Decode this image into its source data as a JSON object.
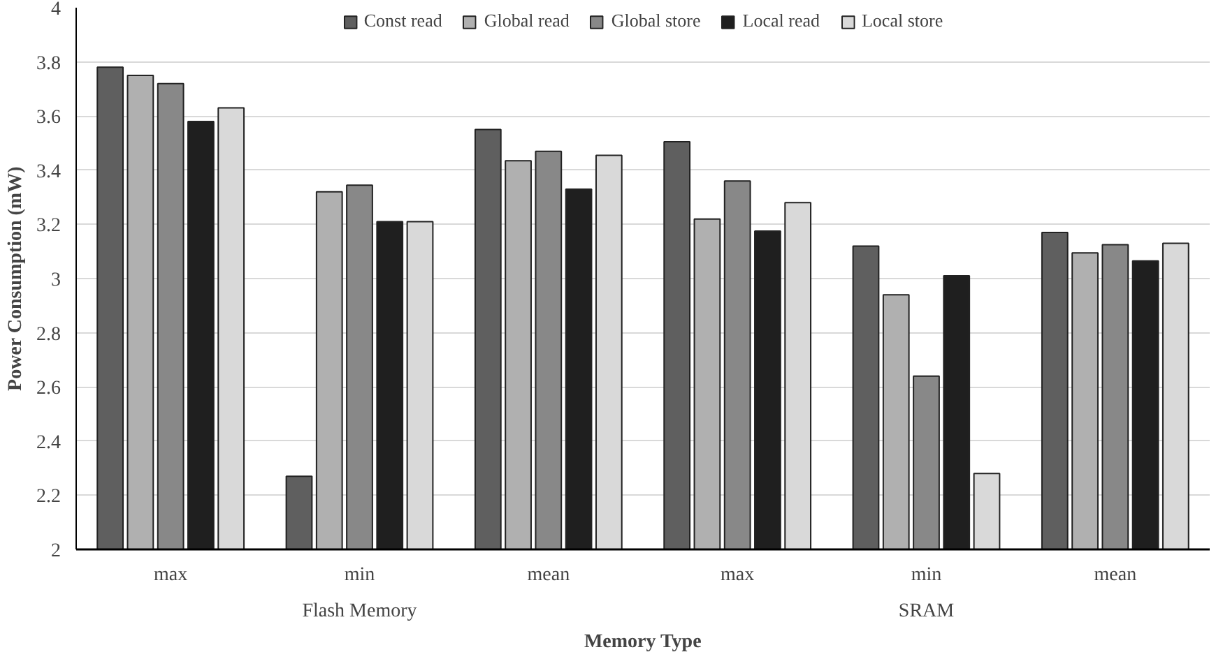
{
  "chart_data": {
    "type": "bar",
    "xlabel": "Memory Type",
    "ylabel": "Power Consumption (mW)",
    "categories": [
      "max",
      "min",
      "mean",
      "max",
      "min",
      "mean"
    ],
    "annotations": [
      "Flash Memory",
      "SRAM"
    ],
    "series": [
      {
        "name": "Const read",
        "color": "#5f5f5f",
        "values": [
          3.78,
          2.27,
          3.55,
          3.505,
          3.12,
          3.17
        ]
      },
      {
        "name": "Global read",
        "color": "#b0b0b0",
        "values": [
          3.75,
          3.32,
          3.435,
          3.22,
          2.94,
          3.095
        ]
      },
      {
        "name": "Global store",
        "color": "#888888",
        "values": [
          3.72,
          3.345,
          3.47,
          3.36,
          2.64,
          3.125
        ]
      },
      {
        "name": "Local read",
        "color": "#1f1f1f",
        "values": [
          3.58,
          3.21,
          3.33,
          3.175,
          3.01,
          3.065
        ]
      },
      {
        "name": "Local store",
        "color": "#d9d9d9",
        "values": [
          3.63,
          3.21,
          3.455,
          3.28,
          2.28,
          3.13
        ]
      }
    ],
    "ylim": [
      2,
      4
    ],
    "yticks": [
      2,
      2.2,
      2.4,
      2.6,
      2.8,
      3,
      3.2,
      3.4,
      3.6,
      3.8,
      4
    ],
    "grid": "y",
    "legend": "top"
  }
}
